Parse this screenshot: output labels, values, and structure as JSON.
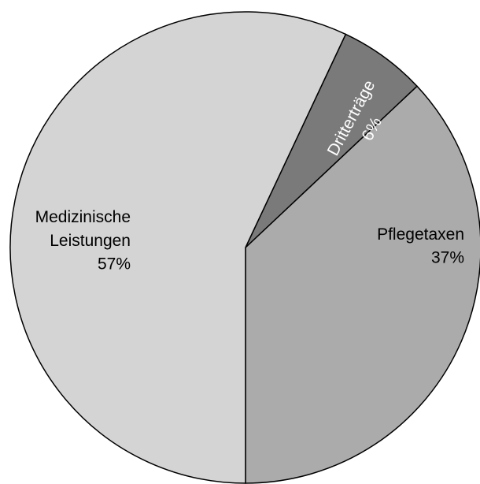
{
  "chart_data": {
    "type": "pie",
    "categories": [
      "Pflegetaxen",
      "Dritterträge",
      "Medizinische Leistungen"
    ],
    "values": [
      37,
      6,
      57
    ],
    "value_labels": [
      "37%",
      "6%",
      "57%"
    ],
    "colors": [
      "#ababab",
      "#7a7a7a",
      "#d4d4d4"
    ]
  }
}
